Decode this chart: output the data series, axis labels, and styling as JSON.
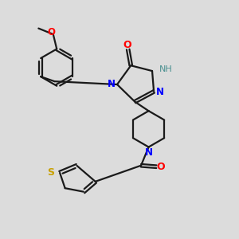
{
  "bg_color": "#dcdcdc",
  "bond_color": "#1a1a1a",
  "label_colors": {
    "O": "#ff0000",
    "N": "#0000ff",
    "S": "#c8a000",
    "H": "#4a9090",
    "C": "#1a1a1a"
  },
  "figsize": [
    3.0,
    3.0
  ],
  "dpi": 100,
  "lw": 1.6,
  "lw_double_inner": 1.4
}
